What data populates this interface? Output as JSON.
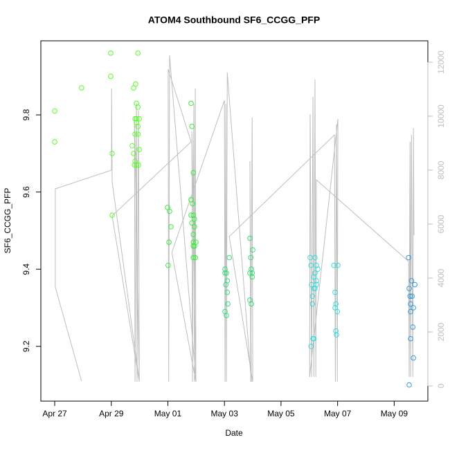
{
  "chart_data": {
    "type": "scatter",
    "title": "ATOM4 Southbound SF6_CCGG_PFP",
    "x_label": "Date",
    "y_label": "SF6_CCGG_PFP",
    "xlim": [
      -0.49,
      13.19
    ],
    "ylim": [
      9.058,
      9.992
    ],
    "y2lim": [
      -564,
      12795
    ],
    "xticks": [
      {
        "value": 0,
        "label": "Apr 27"
      },
      {
        "value": 2,
        "label": "Apr 29"
      },
      {
        "value": 4,
        "label": "May 01"
      },
      {
        "value": 6,
        "label": "May 03"
      },
      {
        "value": 8,
        "label": "May 05"
      },
      {
        "value": 10,
        "label": "May 07"
      },
      {
        "value": 12,
        "label": "May 09"
      }
    ],
    "yticks": [
      9.2,
      9.4,
      9.6,
      9.8
    ],
    "y2ticks": [
      0,
      2000,
      4000,
      6000,
      8000,
      10000,
      12000
    ],
    "series": [
      {
        "type": "line",
        "axis": "y2",
        "color": "#bebebe",
        "x": [
          0.95,
          0.02,
          0.02,
          2.01,
          2.01,
          2.03,
          2.99,
          2.82,
          2.84,
          2.89,
          2.91,
          2.96,
          2.99,
          2.03,
          4.82,
          4.01,
          4.03,
          4.06,
          4.99,
          4.85,
          4.87,
          4.92,
          4.94,
          4.97,
          4.99,
          4.14,
          6.0,
          6.02,
          6.05,
          6.07,
          6.1,
          6.95,
          6.9,
          6.93,
          6.98,
          7.0,
          6.17,
          9.89,
          9.92,
          9.96,
          9.99,
          10.01,
          9.01,
          9.03,
          9.08,
          9.13,
          9.16,
          9.2,
          9.23,
          9.25,
          12.51,
          12.53,
          12.56,
          12.58,
          12.61,
          12.66,
          12.68,
          12.7
        ],
        "values": [
          179,
          3667,
          7308,
          8000,
          11025,
          7564,
          205,
          9948,
          154,
          10461,
          154,
          10205,
          154,
          6307,
          9051,
          11743,
          154,
          12256,
          205,
          9436,
          154,
          10461,
          154,
          11025,
          154,
          4949,
          10589,
          154,
          10461,
          154,
          11615,
          154,
          8333,
          154,
          9948,
          154,
          5538,
          9307,
          154,
          9692,
          154,
          9898,
          333,
          10077,
          333,
          10717,
          333,
          11358,
          333,
          7641,
          4615,
          333,
          9051,
          333,
          9307,
          333,
          9563,
          5589
        ]
      },
      {
        "color": "#55ff22",
        "x": [
          0,
          0,
          0.95,
          1.98,
          1.98,
          2.03,
          2.03,
          2.79,
          2.86,
          2.94,
          2.89,
          2.94,
          2.84,
          2.89,
          2.99,
          2.89,
          2.94,
          2.84,
          2.94,
          2.74,
          2.99,
          2.79,
          2.84,
          2.82,
          2.96,
          2.89
        ],
        "values": [
          9.81,
          9.73,
          9.87,
          9.96,
          9.9,
          9.7,
          9.54,
          9.87,
          9.88,
          9.96,
          9.83,
          9.82,
          9.79,
          9.79,
          9.79,
          9.78,
          9.77,
          9.75,
          9.75,
          9.72,
          9.71,
          9.7,
          9.68,
          9.67,
          9.67,
          9.67
        ]
      },
      {
        "color": "#33ee33",
        "x": [
          3.99,
          4.06,
          4.11,
          4.04,
          4.01,
          4.82,
          4.85,
          4.9,
          4.82,
          4.87,
          4.82,
          4.9,
          4.94,
          4.85,
          4.94,
          4.9,
          4.9,
          4.99,
          4.9,
          4.94,
          4.9,
          4.97
        ],
        "values": [
          9.56,
          9.55,
          9.51,
          9.47,
          9.41,
          9.83,
          9.77,
          9.65,
          9.58,
          9.57,
          9.54,
          9.54,
          9.53,
          9.52,
          9.51,
          9.49,
          9.47,
          9.47,
          9.46,
          9.46,
          9.43,
          9.43
        ]
      },
      {
        "color": "#33dd77",
        "x": [
          6.02,
          6.07,
          6.02,
          6.05,
          6.1,
          6.1,
          6.12,
          6.02,
          6.07,
          6.17,
          6.9,
          6.93,
          6.95,
          6.9,
          6.98,
          6.98,
          7.0,
          6.9,
          6.95
        ],
        "values": [
          9.4,
          9.39,
          9.39,
          9.36,
          9.37,
          9.34,
          9.31,
          9.29,
          9.28,
          9.43,
          9.48,
          9.43,
          9.4,
          9.39,
          9.39,
          9.38,
          9.45,
          9.32,
          9.31
        ]
      },
      {
        "color": "#33dddd",
        "x": [
          9.03,
          9.06,
          9.08,
          9.11,
          9.11,
          9.13,
          9.16,
          9.06,
          9.16,
          9.2,
          9.2,
          9.25,
          9.25,
          9.2,
          9.16,
          9.3,
          9.25,
          9.87,
          10.01,
          9.91,
          9.94,
          9.91,
          9.99,
          9.94,
          9.96
        ],
        "values": [
          9.43,
          9.41,
          9.36,
          9.33,
          9.31,
          9.22,
          9.22,
          9.2,
          9.38,
          9.43,
          9.39,
          9.41,
          9.36,
          9.35,
          9.35,
          9.4,
          9.37,
          9.41,
          9.41,
          9.34,
          9.31,
          9.3,
          9.29,
          9.24,
          9.23
        ]
      },
      {
        "color": "#3399dd",
        "x": [
          12.51,
          12.53,
          12.61,
          12.63,
          12.56,
          12.58,
          12.58,
          12.68,
          12.66,
          12.58,
          12.73,
          12.68,
          12.53
        ],
        "values": [
          9.43,
          9.35,
          9.37,
          9.33,
          9.33,
          9.31,
          9.29,
          9.3,
          9.25,
          9.22,
          9.36,
          9.17,
          9.1
        ]
      }
    ]
  }
}
